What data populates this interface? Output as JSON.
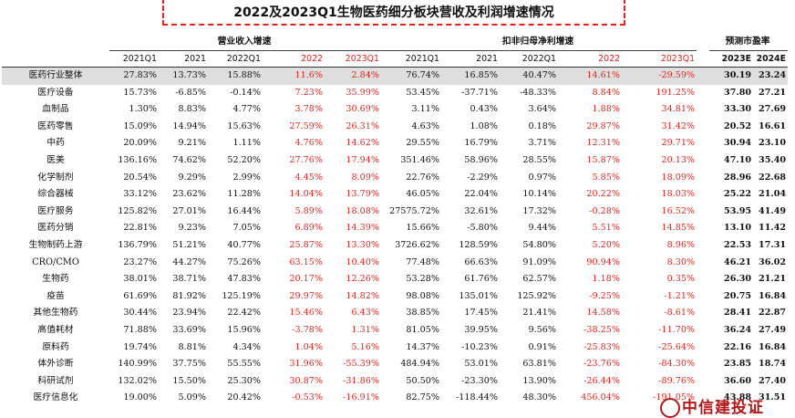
{
  "title": "2022及2023Q1生物医药细分板块营收及利润增速情况",
  "groups": {
    "revenue": "营业收入增速",
    "profit": "扣非归母净利增速",
    "pe": "预测市盈率"
  },
  "year_headers": [
    "2021Q1",
    "2021",
    "2022Q1",
    "2022",
    "2023Q1",
    "2021Q1",
    "2021",
    "2022Q1",
    "2022",
    "2023Q1",
    "2023E",
    "2024E"
  ],
  "rows": [
    {
      "name": "医药行业整体",
      "v": [
        "27.83%",
        "13.73%",
        "15.88%",
        "11.6%",
        "2.84%",
        "76.74%",
        "16.85%",
        "40.47%",
        "14.61%",
        "-29.59%",
        "30.19",
        "23.24"
      ]
    },
    {
      "name": "医疗设备",
      "v": [
        "15.73%",
        "-6.85%",
        "-0.14%",
        "7.23%",
        "35.99%",
        "53.45%",
        "-37.71%",
        "-48.33%",
        "8.84%",
        "191.25%",
        "37.80",
        "27.21"
      ]
    },
    {
      "name": "血制品",
      "v": [
        "1.30%",
        "8.83%",
        "4.77%",
        "3.78%",
        "30.69%",
        "3.11%",
        "0.43%",
        "3.64%",
        "1.88%",
        "34.81%",
        "33.30",
        "27.69"
      ]
    },
    {
      "name": "医药零售",
      "v": [
        "15.09%",
        "14.94%",
        "15.63%",
        "27.59%",
        "26.31%",
        "4.63%",
        "1.08%",
        "0.18%",
        "29.87%",
        "31.42%",
        "20.52",
        "16.61"
      ]
    },
    {
      "name": "中药",
      "v": [
        "20.09%",
        "9.21%",
        "1.11%",
        "4.76%",
        "14.62%",
        "29.55%",
        "16.79%",
        "3.71%",
        "12.31%",
        "29.71%",
        "30.94",
        "23.10"
      ]
    },
    {
      "name": "医美",
      "v": [
        "136.16%",
        "74.62%",
        "52.20%",
        "27.76%",
        "17.94%",
        "351.46%",
        "58.96%",
        "28.55%",
        "15.87%",
        "20.13%",
        "47.10",
        "35.40"
      ]
    },
    {
      "name": "化学制剂",
      "v": [
        "20.54%",
        "9.29%",
        "2.99%",
        "4.45%",
        "8.09%",
        "22.76%",
        "-2.29%",
        "0.97%",
        "5.85%",
        "18.09%",
        "28.96",
        "22.68"
      ]
    },
    {
      "name": "综合器械",
      "v": [
        "33.12%",
        "23.62%",
        "11.28%",
        "14.04%",
        "13.79%",
        "46.05%",
        "22.04%",
        "10.14%",
        "20.22%",
        "18.03%",
        "25.22",
        "21.04"
      ]
    },
    {
      "name": "医疗服务",
      "v": [
        "125.82%",
        "27.01%",
        "16.44%",
        "5.89%",
        "18.08%",
        "27575.72%",
        "32.61%",
        "17.32%",
        "-0.28%",
        "16.52%",
        "53.95",
        "41.49"
      ]
    },
    {
      "name": "医药分销",
      "v": [
        "22.81%",
        "9.23%",
        "7.05%",
        "6.89%",
        "14.39%",
        "15.66%",
        "-5.80%",
        "9.44%",
        "5.51%",
        "14.85%",
        "13.10",
        "11.42"
      ]
    },
    {
      "name": "生物制药上游",
      "v": [
        "136.79%",
        "51.21%",
        "40.77%",
        "25.87%",
        "13.30%",
        "3726.62%",
        "128.59%",
        "54.80%",
        "5.20%",
        "8.96%",
        "22.53",
        "17.31"
      ]
    },
    {
      "name": "CRO/CMO",
      "v": [
        "23.27%",
        "44.27%",
        "75.26%",
        "63.15%",
        "10.40%",
        "77.48%",
        "66.63%",
        "91.09%",
        "90.94%",
        "8.30%",
        "46.21",
        "36.02"
      ]
    },
    {
      "name": "生物药",
      "v": [
        "38.01%",
        "38.71%",
        "47.83%",
        "20.17%",
        "12.26%",
        "53.28%",
        "61.76%",
        "62.57%",
        "1.18%",
        "0.35%",
        "26.30",
        "21.21"
      ]
    },
    {
      "name": "疫苗",
      "v": [
        "61.69%",
        "81.92%",
        "125.19%",
        "29.97%",
        "14.82%",
        "98.08%",
        "135.01%",
        "125.92%",
        "-9.25%",
        "-1.21%",
        "20.75",
        "16.84"
      ]
    },
    {
      "name": "其他生物药",
      "v": [
        "30.44%",
        "23.94%",
        "22.42%",
        "15.46%",
        "6.43%",
        "38.85%",
        "17.45%",
        "21.41%",
        "14.58%",
        "-8.61%",
        "28.41",
        "22.87"
      ]
    },
    {
      "name": "高值耗材",
      "v": [
        "71.88%",
        "33.69%",
        "15.96%",
        "-3.78%",
        "1.31%",
        "81.05%",
        "39.95%",
        "9.56%",
        "-38.25%",
        "-11.70%",
        "36.24",
        "27.49"
      ]
    },
    {
      "name": "原料药",
      "v": [
        "19.74%",
        "8.81%",
        "4.34%",
        "1.04%",
        "5.16%",
        "14.37%",
        "-10.23%",
        "0.91%",
        "-25.83%",
        "-25.64%",
        "22.16",
        "16.84"
      ]
    },
    {
      "name": "体外诊断",
      "v": [
        "140.99%",
        "37.75%",
        "55.55%",
        "31.96%",
        "-55.39%",
        "484.94%",
        "53.01%",
        "63.81%",
        "-23.76%",
        "-84.30%",
        "23.85",
        "18.74"
      ]
    },
    {
      "name": "科研试剂",
      "v": [
        "132.02%",
        "15.50%",
        "25.30%",
        "30.87%",
        "-31.86%",
        "50.50%",
        "-23.30%",
        "13.90%",
        "-26.44%",
        "-89.76%",
        "36.60",
        "27.40"
      ]
    },
    {
      "name": "医疗信息化",
      "v": [
        "19.00%",
        "5.09%",
        "20.42%",
        "-0.53%",
        "-16.91%",
        "82.75%",
        "-118.44%",
        "48.30%",
        "456.04%",
        "-191.05%",
        "43.88",
        "31.51"
      ]
    }
  ],
  "logo_text": "中信建投证",
  "colors": {
    "highlight": "#e0241c",
    "first_row_bg": "#dedede"
  }
}
